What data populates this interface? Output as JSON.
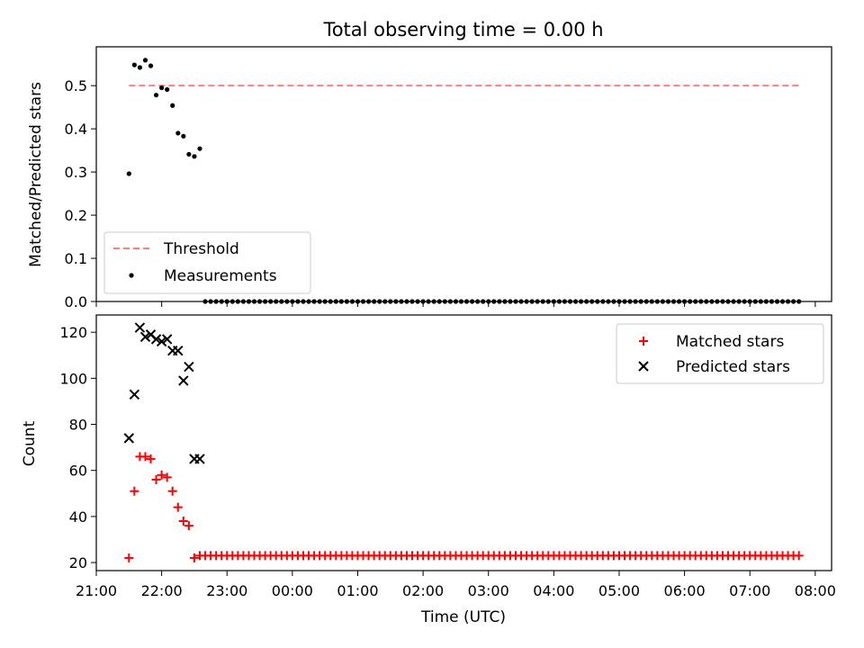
{
  "chart_data": [
    {
      "type": "scatter",
      "title": "Total observing time = 0.00 h",
      "xlabel": "",
      "ylabel": "Matched/Predicted stars",
      "xlim": [
        "21:00",
        "08:15"
      ],
      "ylim": [
        0,
        0.59
      ],
      "yticks": [
        "0.0",
        "0.1",
        "0.2",
        "0.3",
        "0.4",
        "0.5"
      ],
      "legend_position": "lower-left",
      "threshold": {
        "name": "Threshold",
        "value": 0.5,
        "x_start": "21:30",
        "x_end": "07:45",
        "color": "#ff7f7f",
        "style": "dashed"
      },
      "series": [
        {
          "name": "Measurements",
          "color": "#000000",
          "marker": "dot",
          "points": [
            [
              "21:30",
              0.296
            ],
            [
              "21:35",
              0.548
            ],
            [
              "21:40",
              0.542
            ],
            [
              "21:45",
              0.559
            ],
            [
              "21:50",
              0.546
            ],
            [
              "21:55",
              0.478
            ],
            [
              "22:00",
              0.495
            ],
            [
              "22:05",
              0.491
            ],
            [
              "22:10",
              0.454
            ],
            [
              "22:15",
              0.39
            ],
            [
              "22:20",
              0.383
            ],
            [
              "22:25",
              0.341
            ],
            [
              "22:30",
              0.336
            ],
            [
              "22:35",
              0.354
            ]
          ],
          "zeros_from": "22:40",
          "zeros_to": "07:45",
          "zeros_step_minutes": 5
        }
      ]
    },
    {
      "type": "scatter",
      "title": "",
      "xlabel": "Time (UTC)",
      "ylabel": "Count",
      "xlim": [
        "21:00",
        "08:15"
      ],
      "ylim": [
        16.5,
        127.5
      ],
      "xticks": [
        "21:00",
        "22:00",
        "23:00",
        "00:00",
        "01:00",
        "02:00",
        "03:00",
        "04:00",
        "05:00",
        "06:00",
        "07:00",
        "08:00"
      ],
      "yticks": [
        "20",
        "40",
        "60",
        "80",
        "100",
        "120"
      ],
      "legend_position": "upper-right",
      "series": [
        {
          "name": "Matched stars",
          "color": "#ff0000",
          "marker": "plus",
          "points": [
            [
              "21:30",
              22
            ],
            [
              "21:35",
              51
            ],
            [
              "21:40",
              66
            ],
            [
              "21:45",
              66
            ],
            [
              "21:50",
              65
            ],
            [
              "21:55",
              56
            ],
            [
              "22:00",
              58
            ],
            [
              "22:05",
              57
            ],
            [
              "22:10",
              51
            ],
            [
              "22:15",
              44
            ],
            [
              "22:20",
              38
            ],
            [
              "22:25",
              36
            ],
            [
              "22:30",
              22
            ]
          ],
          "constant_from": "22:35",
          "constant_to": "07:45",
          "constant_value": 23,
          "constant_step_minutes": 5
        },
        {
          "name": "Predicted stars",
          "color": "#000000",
          "marker": "x",
          "points": [
            [
              "21:30",
              74
            ],
            [
              "21:35",
              93
            ],
            [
              "21:40",
              122
            ],
            [
              "21:45",
              118
            ],
            [
              "21:50",
              119
            ],
            [
              "21:55",
              117
            ],
            [
              "22:00",
              116
            ],
            [
              "22:05",
              117
            ],
            [
              "22:10",
              112
            ],
            [
              "22:15",
              112
            ],
            [
              "22:20",
              99
            ],
            [
              "22:25",
              105
            ],
            [
              "22:30",
              65
            ],
            [
              "22:35",
              65
            ]
          ]
        }
      ]
    }
  ]
}
